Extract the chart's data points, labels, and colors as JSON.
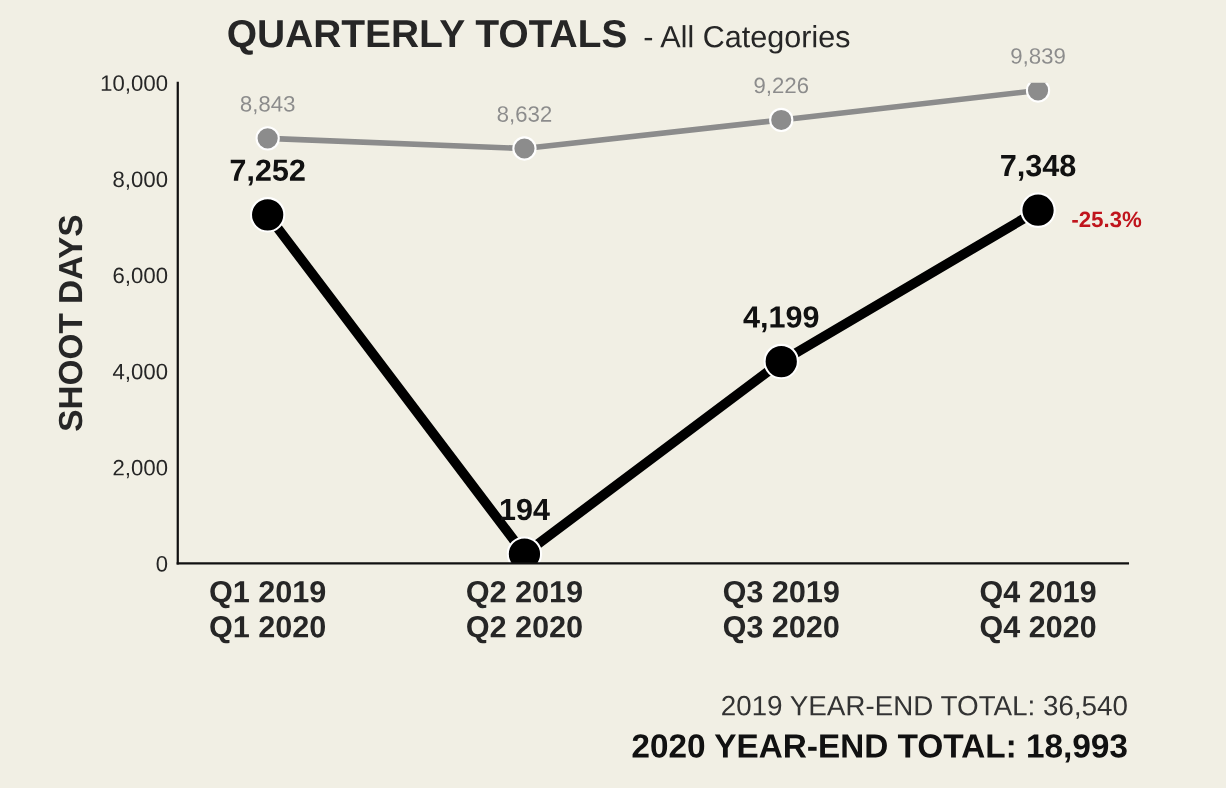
{
  "chart_data": {
    "type": "line",
    "title": "QUARTERLY TOTALS",
    "subtitle": "- All Categories",
    "ylabel": "SHOOT DAYS",
    "categories": [
      "Q1 2019\nQ1 2020",
      "Q2 2019\nQ2 2020",
      "Q3 2019\nQ3 2020",
      "Q4 2019\nQ4 2020"
    ],
    "series": [
      {
        "color": "#8c8c8c",
        "values": [
          8843,
          8632,
          9226,
          9839
        ],
        "value_labels": [
          "8,843",
          "8,632",
          "9,226",
          "9,839"
        ]
      },
      {
        "color": "#000000",
        "values": [
          7252,
          194,
          4199,
          7348
        ],
        "value_labels": [
          "7,252",
          "194",
          "4,199",
          "7,348"
        ]
      }
    ],
    "ylim": [
      0,
      10000
    ],
    "yticks": [
      {
        "value": 0,
        "label": "0"
      },
      {
        "value": 2000,
        "label": "2,000"
      },
      {
        "value": 4000,
        "label": "4,000"
      },
      {
        "value": 6000,
        "label": "6,000"
      },
      {
        "value": 8000,
        "label": "8,000"
      },
      {
        "value": 10000,
        "label": "10,000"
      }
    ],
    "marker": "circle",
    "grid": false,
    "annotations": [
      {
        "text": "-25.3%",
        "x": "Q4 2019\nQ4 2020",
        "y": 7348
      },
      "2019 YEAR-END TOTAL: 36,540",
      "2020 YEAR-END TOTAL: 18,993"
    ]
  }
}
